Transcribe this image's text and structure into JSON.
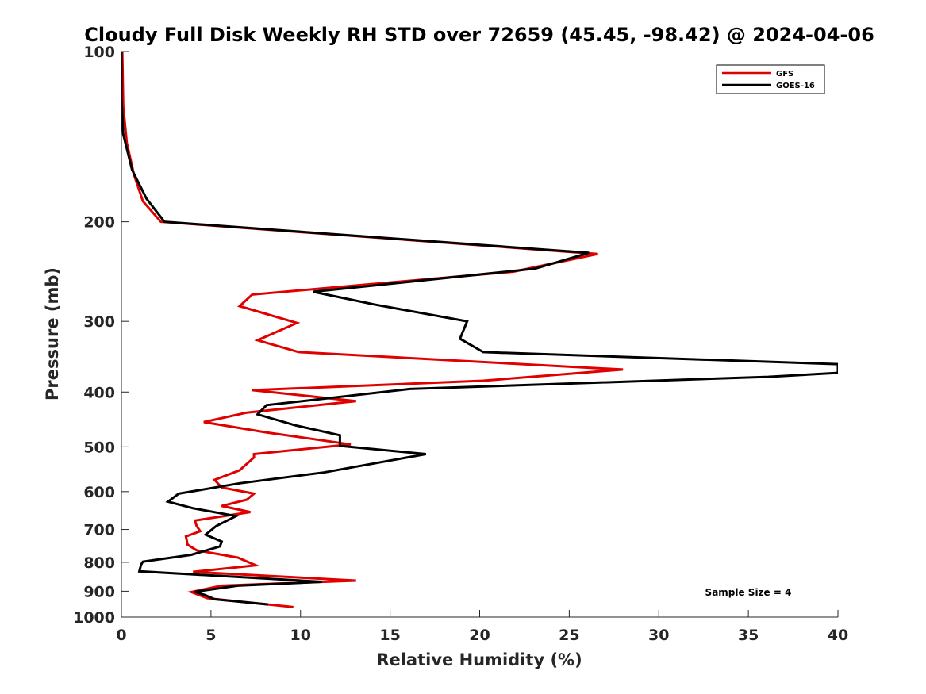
{
  "chart_data": {
    "type": "line",
    "title": "Cloudy Full Disk Weekly RH STD over 72659 (45.45, -98.42) @ 2024-04-06",
    "xlabel": "Relative Humidity (%)",
    "ylabel": "Pressure (mb)",
    "xlim": [
      0,
      40
    ],
    "ylim": [
      100,
      1000
    ],
    "y_scale": "log",
    "y_direction": "reversed",
    "x_ticks": [
      0,
      5,
      10,
      15,
      20,
      25,
      30,
      35,
      40
    ],
    "y_ticks": [
      100,
      200,
      300,
      400,
      500,
      600,
      700,
      800,
      900,
      1000
    ],
    "grid": false,
    "legend_position": "top-right",
    "annotation": "Sample Size = 4",
    "series": [
      {
        "name": "GFS",
        "color": "#e00000",
        "points": [
          [
            9.6,
            960
          ],
          [
            4.8,
            926
          ],
          [
            3.9,
            903
          ],
          [
            5.6,
            880
          ],
          [
            13.1,
            862
          ],
          [
            4.0,
            832
          ],
          [
            7.5,
            810
          ],
          [
            6.5,
            785
          ],
          [
            4.2,
            762
          ],
          [
            3.7,
            745
          ],
          [
            3.6,
            720
          ],
          [
            4.4,
            705
          ],
          [
            4.2,
            690
          ],
          [
            4.1,
            675
          ],
          [
            7.2,
            652
          ],
          [
            5.6,
            636
          ],
          [
            7.0,
            620
          ],
          [
            7.4,
            605
          ],
          [
            5.6,
            590
          ],
          [
            5.2,
            572
          ],
          [
            6.6,
            550
          ],
          [
            7.4,
            522
          ],
          [
            7.4,
            515
          ],
          [
            12.8,
            495
          ],
          [
            8.0,
            471
          ],
          [
            4.6,
            452
          ],
          [
            7.0,
            435
          ],
          [
            13.1,
            415
          ],
          [
            7.3,
            397
          ],
          [
            20.2,
            382
          ],
          [
            28.0,
            365
          ],
          [
            9.9,
            340
          ],
          [
            7.6,
            324
          ],
          [
            9.8,
            302
          ],
          [
            6.6,
            282
          ],
          [
            7.3,
            269
          ],
          [
            21.9,
            245
          ],
          [
            26.6,
            228
          ],
          [
            2.2,
            200
          ],
          [
            1.2,
            184
          ],
          [
            0.7,
            165
          ],
          [
            0.3,
            145
          ],
          [
            0.1,
            125
          ],
          [
            0.05,
            100
          ]
        ]
      },
      {
        "name": "GOES-16",
        "color": "#000000",
        "points": [
          [
            8.2,
            950
          ],
          [
            5.2,
            930
          ],
          [
            4.7,
            915
          ],
          [
            4.1,
            902
          ],
          [
            6.5,
            880
          ],
          [
            11.2,
            866
          ],
          [
            1.0,
            830
          ],
          [
            1.1,
            808
          ],
          [
            1.2,
            798
          ],
          [
            3.9,
            776
          ],
          [
            5.5,
            750
          ],
          [
            5.6,
            735
          ],
          [
            4.7,
            715
          ],
          [
            5.3,
            690
          ],
          [
            6.4,
            663
          ],
          [
            4.0,
            642
          ],
          [
            2.6,
            625
          ],
          [
            3.2,
            605
          ],
          [
            6.6,
            580
          ],
          [
            11.3,
            555
          ],
          [
            17.0,
            515
          ],
          [
            12.2,
            498
          ],
          [
            12.2,
            477
          ],
          [
            9.7,
            458
          ],
          [
            7.6,
            438
          ],
          [
            8.1,
            422
          ],
          [
            16.1,
            395
          ],
          [
            36.1,
            376
          ],
          [
            40.0,
            370
          ],
          [
            40.0,
            357
          ],
          [
            20.2,
            340
          ],
          [
            18.9,
            322
          ],
          [
            19.3,
            300
          ],
          [
            14.1,
            280
          ],
          [
            10.7,
            266
          ],
          [
            23.1,
            242
          ],
          [
            26.1,
            227
          ],
          [
            2.4,
            200
          ],
          [
            1.4,
            182
          ],
          [
            0.6,
            162
          ],
          [
            0.1,
            140
          ],
          [
            0.0,
            120
          ],
          [
            0.0,
            100
          ]
        ]
      }
    ]
  }
}
